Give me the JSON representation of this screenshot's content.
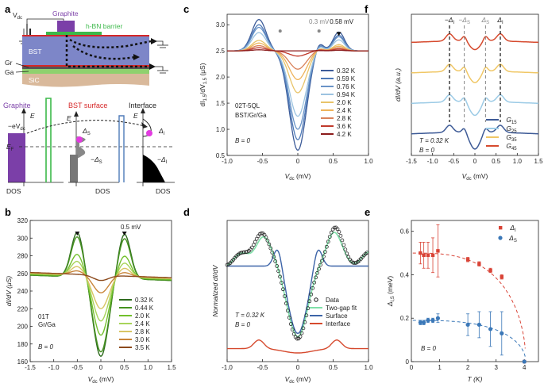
{
  "panel_labels": [
    "a",
    "b",
    "c",
    "d",
    "e",
    "f"
  ],
  "panel_a": {
    "labels": {
      "vdc": "V",
      "vdc_sub": "dc",
      "graphite": "Graphite",
      "hbn": "h-BN barrier",
      "bst": "BST",
      "gr": "Gr",
      "ga": "Ga",
      "sic": "SiC",
      "graphite_b": "Graphite",
      "bst_surface": "BST surface",
      "interface": "Interface",
      "e1": "E",
      "e2": "E",
      "e3": "E",
      "evdc": "−eV",
      "evdc_sub": "dc",
      "ef": "E",
      "ef_sub": "F",
      "ds": "Δ",
      "ds_sub": "S",
      "mds": "−Δ",
      "mds_sub": "S",
      "di": "Δ",
      "di_sub": "I",
      "mdi": "−Δ",
      "mdi_sub": "I",
      "dos1": "DOS",
      "dos2": "DOS",
      "dos3": "DOS"
    },
    "colors": {
      "graphite": "#7b3fa8",
      "hbn": "#3cb94a",
      "bst": "#7d86c8",
      "red": "#d62728",
      "ga": "#8fd16e",
      "sic": "#d9b99b",
      "dot": "#e23be0"
    }
  },
  "panel_b": {
    "ylabel": "dI/dV (μS)",
    "xlabel": "V",
    "xlabel_sub": "dc",
    "xlabel_unit": " (mV)",
    "sample": "01T",
    "sample2": "Gr/Ga",
    "field": "B = 0",
    "annot": "0.5 mV",
    "chart_data": {
      "type": "line",
      "xlim": [
        -1.5,
        1.5
      ],
      "ylim": [
        160,
        320
      ],
      "xticks": [
        "-1.5",
        "-1.0",
        "-0.5",
        "0",
        "0.5",
        "1.0",
        "1.5"
      ],
      "yticks": [
        "160",
        "180",
        "200",
        "220",
        "240",
        "260",
        "280",
        "300",
        "320"
      ],
      "series": [
        {
          "name": "0.32 K",
          "color": "#2e6b1e",
          "peak": 306,
          "min": 166,
          "base": 255
        },
        {
          "name": "0.44 K",
          "color": "#45921f",
          "peak": 301,
          "min": 171,
          "base": 255
        },
        {
          "name": "2.0 K",
          "color": "#72c02c",
          "peak": 281,
          "min": 190,
          "base": 256
        },
        {
          "name": "2.4 K",
          "color": "#a8d45a",
          "peak": 273,
          "min": 206,
          "base": 257
        },
        {
          "name": "2.8 K",
          "color": "#d8c565",
          "peak": 267,
          "min": 220,
          "base": 257
        },
        {
          "name": "3.0 K",
          "color": "#c9853a",
          "peak": 262,
          "min": 238,
          "base": 258
        },
        {
          "name": "3.5 K",
          "color": "#8c4a1c",
          "peak": 258,
          "min": 252,
          "base": 258
        }
      ]
    }
  },
  "panel_c": {
    "ylabel": "dI",
    "ylabel_sub": "1.5",
    "ylabel_mid": "/dV",
    "ylabel_sub2": "1.5",
    "ylabel_unit": " (μS)",
    "xlabel": "V",
    "xlabel_sub": "dc",
    "xlabel_unit": " (mV)",
    "sample": "02T-5QL",
    "sample2": "BST/Gr/Ga",
    "field": "B = 0",
    "annot1": "0.3 mV",
    "annot2": "0.58 mV",
    "chart_data": {
      "type": "line",
      "xlim": [
        -1.0,
        1.0
      ],
      "ylim": [
        0.5,
        3.2
      ],
      "xticks": [
        "-1.0",
        "-0.5",
        "0",
        "0.5",
        "1.0"
      ],
      "yticks": [
        "0.5",
        "1.0",
        "1.5",
        "2.0",
        "2.5",
        "3.0"
      ],
      "series": [
        {
          "name": "0.32 K",
          "color": "#3d5c99",
          "peak": 3.1,
          "min": 0.6
        },
        {
          "name": "0.59 K",
          "color": "#4e7ab8",
          "peak": 3.0,
          "min": 0.8
        },
        {
          "name": "0.76 K",
          "color": "#6993c7",
          "peak": 2.95,
          "min": 1.0
        },
        {
          "name": "0.94 K",
          "color": "#9cc3e0",
          "peak": 2.85,
          "min": 1.25
        },
        {
          "name": "2.0 K",
          "color": "#e8c46a",
          "peak": 2.7,
          "min": 1.7
        },
        {
          "name": "2.4 K",
          "color": "#eeb35a",
          "peak": 2.65,
          "min": 1.95
        },
        {
          "name": "2.8 K",
          "color": "#d9825a",
          "peak": 2.6,
          "min": 2.15
        },
        {
          "name": "3.6 K",
          "color": "#c0392b",
          "peak": 2.56,
          "min": 2.4
        },
        {
          "name": "4.2 K",
          "color": "#8b1a1a",
          "peak": 2.52,
          "min": 2.5
        }
      ]
    }
  },
  "panel_d": {
    "ylabel": "Normalized dI/dV",
    "xlabel": "V",
    "xlabel_sub": "dc",
    "xlabel_unit": " (mV)",
    "temp": "T = 0.32 K",
    "field": "B = 0",
    "chart_data": {
      "type": "line",
      "xlim": [
        -1.0,
        1.0
      ],
      "ylim": [
        0.0,
        1.3
      ],
      "xticks": [
        "-1.0",
        "-0.5",
        "0",
        "0.5",
        "1.0"
      ],
      "legend": [
        {
          "name": "Data",
          "color": "#111111"
        },
        {
          "name": "Two-gap fit",
          "color": "#7fe0a8"
        },
        {
          "name": "Surface",
          "color": "#3d64a8"
        },
        {
          "name": "Interface",
          "color": "#d64a2e"
        }
      ],
      "data_min": 0.25,
      "interface_peak": 0.2,
      "interface_x": [
        -0.55,
        0.55
      ]
    }
  },
  "panel_e": {
    "ylabel": "Δ",
    "ylabel_sub": "I,S",
    "ylabel_unit": " (meV)",
    "xlabel": "T (K)",
    "field": "B = 0",
    "chart_data": {
      "type": "scatter",
      "xlim": [
        0,
        4.5
      ],
      "ylim": [
        0,
        0.65
      ],
      "xticks": [
        "0",
        "1",
        "2",
        "3",
        "4"
      ],
      "yticks": [
        "0",
        "0.2",
        "0.4",
        "0.6"
      ],
      "series": [
        {
          "name": "Δ",
          "sub": "I",
          "color": "#d94336",
          "x": [
            0.32,
            0.44,
            0.59,
            0.76,
            0.94,
            2.0,
            2.4,
            2.8,
            3.2,
            4.0
          ],
          "y": [
            0.5,
            0.49,
            0.49,
            0.49,
            0.51,
            0.47,
            0.45,
            0.42,
            0.39,
            0.0
          ],
          "err": [
            0.05,
            0.06,
            0.06,
            0.08,
            0.12,
            0.01,
            0.01,
            0.01,
            0.01,
            0.0
          ],
          "fit_tc": 4.05,
          "fit_d0": 0.5
        },
        {
          "name": "Δ",
          "sub": "S",
          "color": "#3b78b8",
          "x": [
            0.32,
            0.44,
            0.59,
            0.76,
            0.94,
            2.0,
            2.4,
            2.8,
            3.2,
            4.0
          ],
          "y": [
            0.18,
            0.18,
            0.19,
            0.19,
            0.2,
            0.17,
            0.17,
            0.15,
            0.13,
            0.0
          ],
          "err": [
            0.01,
            0.01,
            0.01,
            0.01,
            0.02,
            0.05,
            0.06,
            0.08,
            0.1,
            0.0
          ],
          "fit_tc": 4.05,
          "fit_d0": 0.19
        }
      ]
    }
  },
  "panel_f": {
    "ylabel": "dI/dV (a.u.)",
    "xlabel": "V",
    "xlabel_sub": "dc",
    "xlabel_unit": " (mV)",
    "temp": "T = 0.32 K",
    "field": "B = 0",
    "markers": [
      {
        "label": "−Δ",
        "sub": "I",
        "x": -0.6
      },
      {
        "label": "−Δ",
        "sub": "S",
        "x": -0.25
      },
      {
        "label": "Δ",
        "sub": "S",
        "x": 0.25
      },
      {
        "label": "Δ",
        "sub": "I",
        "x": 0.6
      }
    ],
    "chart_data": {
      "type": "line",
      "xlim": [
        -1.5,
        1.5
      ],
      "xticks": [
        "-1.5",
        "-1.0",
        "-0.5",
        "0",
        "0.5",
        "1.0",
        "1.5"
      ],
      "series": [
        {
          "name": "G",
          "sub": "15",
          "color": "#3d5a96",
          "offset": 0
        },
        {
          "name": "G",
          "sub": "25",
          "color": "#9ccbe6",
          "offset": 1
        },
        {
          "name": "G",
          "sub": "35",
          "color": "#f0c766",
          "offset": 2
        },
        {
          "name": "G",
          "sub": "45",
          "color": "#d64a2e",
          "offset": 3
        }
      ]
    }
  }
}
